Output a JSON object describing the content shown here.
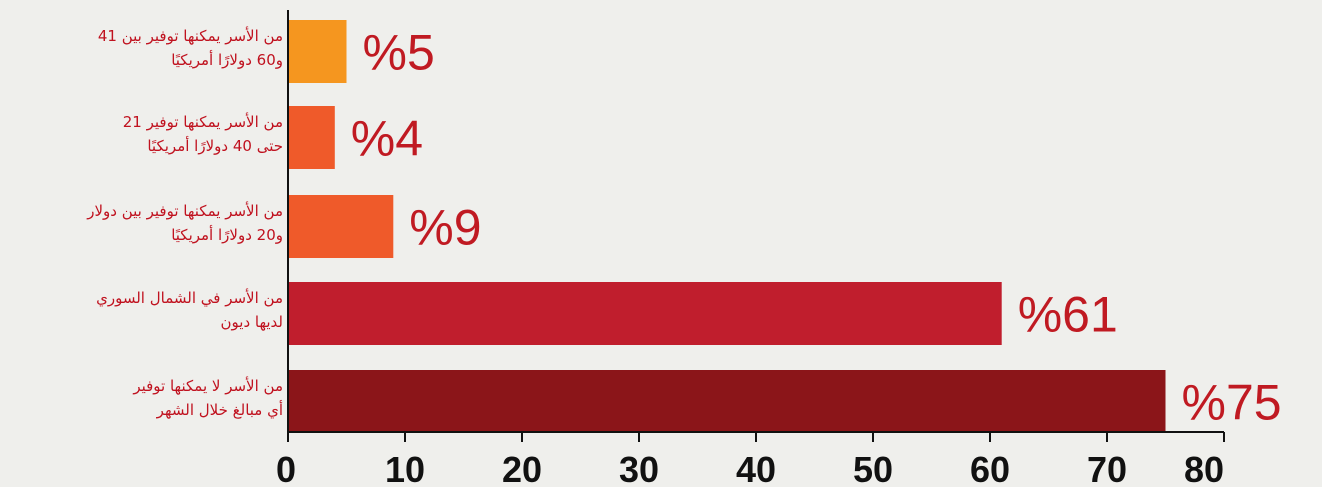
{
  "chart_data": {
    "type": "bar",
    "orientation": "horizontal",
    "categories": [
      "من الأسر يمكنها توفير بين 41 و60 دولارًا أمريكيًا",
      "من الأسر يمكنها توفير 21 حتى 40 دولارًا أمريكيًا",
      "من الأسر يمكنها توفير بين دولار و20 دولارًا أمريكيًا",
      "من الأسر في الشمال السوري لديها ديون",
      "من الأسر لا يمكنها توفير أي مبالغ خلال الشهر"
    ],
    "category_lines": [
      [
        "من الأسر يمكنها توفير بين 41",
        "و60 دولارًا أمريكيًا"
      ],
      [
        "من الأسر يمكنها توفير 21",
        "حتى 40 دولارًا أمريكيًا"
      ],
      [
        "من الأسر يمكنها توفير بين دولار",
        "و20 دولارًا أمريكيًا"
      ],
      [
        "من الأسر في الشمال السوري",
        "لديها ديون"
      ],
      [
        "من الأسر لا يمكنها توفير",
        "أي مبالغ خلال الشهر"
      ]
    ],
    "values": [
      5,
      4,
      9,
      61,
      75
    ],
    "value_labels": [
      "%5",
      "%4",
      "%9",
      "%61",
      "%75"
    ],
    "bar_colors": [
      "#f5961f",
      "#ef5a2a",
      "#ef5a2a",
      "#c01e2d",
      "#8b1519"
    ],
    "xlim": [
      0,
      80
    ],
    "xticks": [
      0,
      10,
      20,
      30,
      40,
      50,
      60,
      70,
      80
    ],
    "grid": false,
    "title": "",
    "xlabel": "",
    "ylabel": ""
  }
}
